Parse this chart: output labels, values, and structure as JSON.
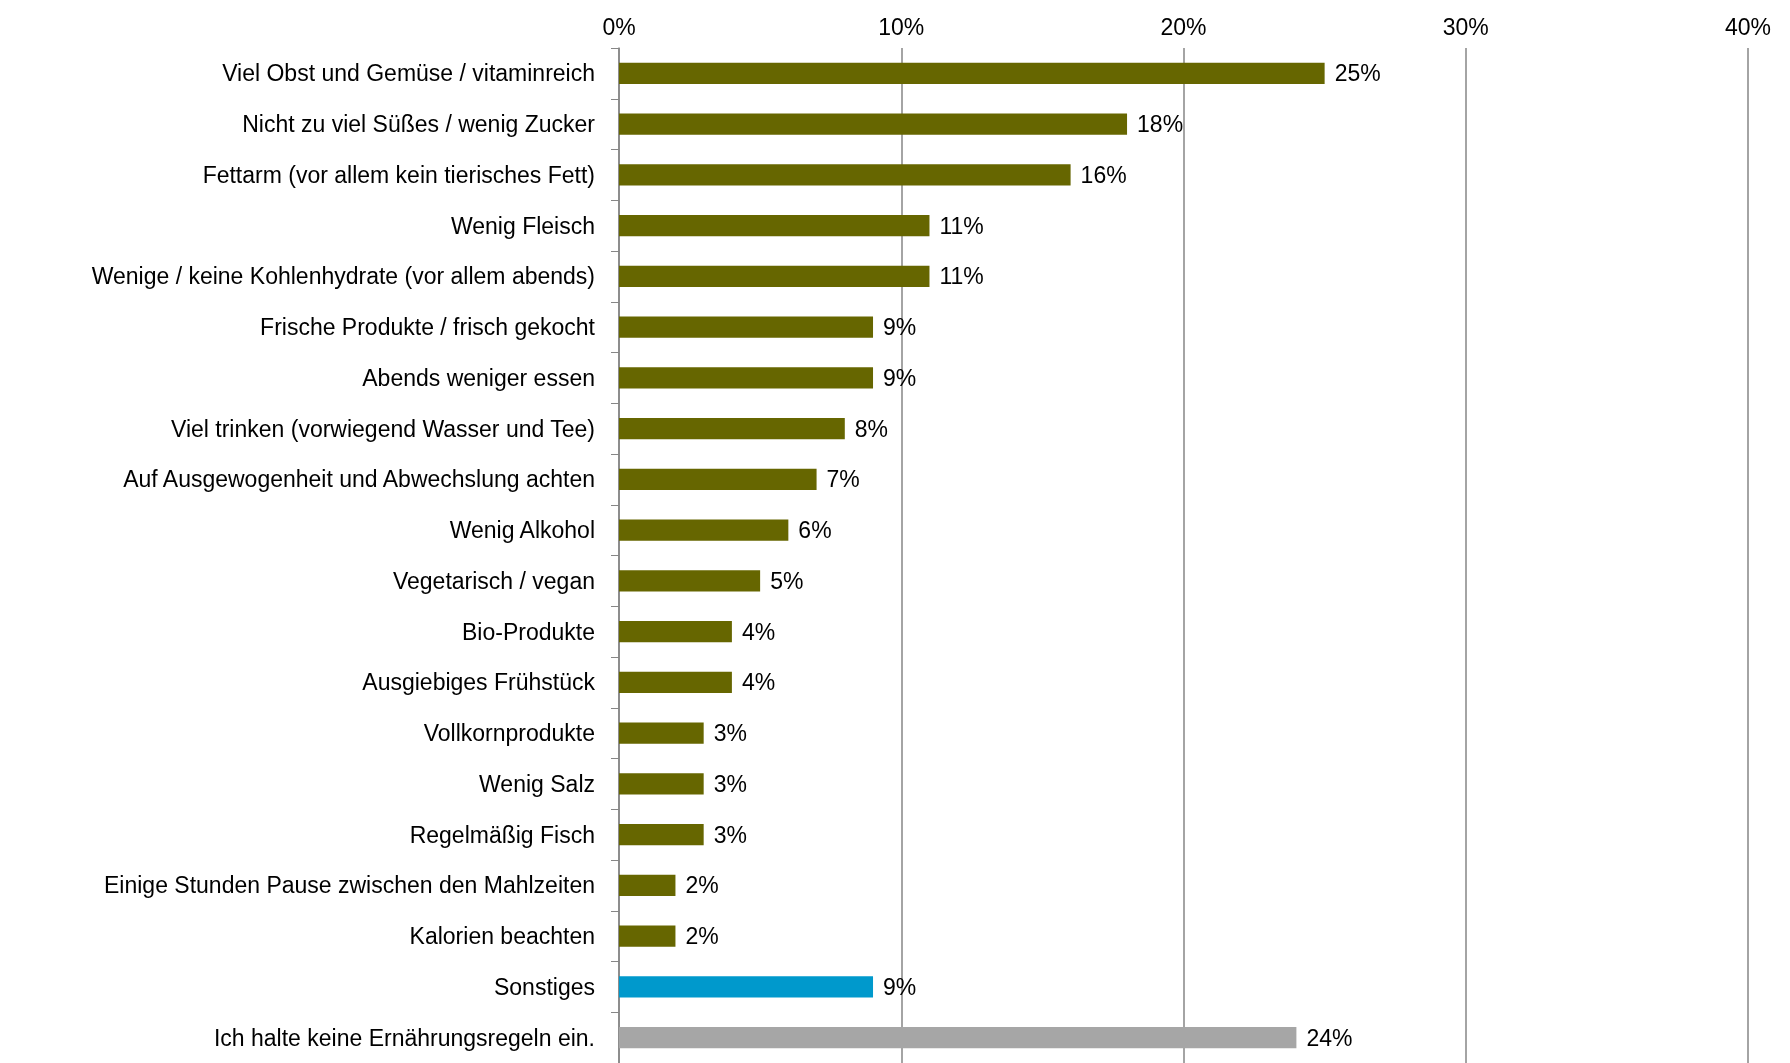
{
  "chart_data": {
    "type": "bar",
    "orientation": "horizontal",
    "categories": [
      "Viel Obst und Gemüse / vitaminreich",
      "Nicht zu viel Süßes / wenig Zucker",
      "Fettarm (vor allem kein tierisches Fett)",
      "Wenig Fleisch",
      "Wenige / keine Kohlenhydrate (vor allem abends)",
      "Frische Produkte / frisch gekocht",
      "Abends weniger essen",
      "Viel trinken (vorwiegend Wasser und Tee)",
      "Auf Ausgewogenheit und Abwechslung achten",
      "Wenig Alkohol",
      "Vegetarisch / vegan",
      "Bio-Produkte",
      "Ausgiebiges Frühstück",
      "Vollkornprodukte",
      "Wenig Salz",
      "Regelmäßig Fisch",
      "Einige Stunden Pause zwischen den Mahlzeiten",
      "Kalorien beachten",
      "Sonstiges",
      "Ich halte keine Ernährungsregeln ein."
    ],
    "values": [
      25,
      18,
      16,
      11,
      11,
      9,
      9,
      8,
      7,
      6,
      5,
      4,
      4,
      3,
      3,
      3,
      2,
      2,
      9,
      24
    ],
    "value_labels": [
      "25%",
      "18%",
      "16%",
      "11%",
      "11%",
      "9%",
      "9%",
      "8%",
      "7%",
      "6%",
      "5%",
      "4%",
      "4%",
      "3%",
      "3%",
      "3%",
      "2%",
      "2%",
      "9%",
      "24%"
    ],
    "colors": [
      "#666600",
      "#666600",
      "#666600",
      "#666600",
      "#666600",
      "#666600",
      "#666600",
      "#666600",
      "#666600",
      "#666600",
      "#666600",
      "#666600",
      "#666600",
      "#666600",
      "#666600",
      "#666600",
      "#666600",
      "#666600",
      "#0099cc",
      "#a6a6a6"
    ],
    "xlim": [
      0,
      40
    ],
    "xticks": [
      {
        "value": 0,
        "label": "0%"
      },
      {
        "value": 10,
        "label": "10%"
      },
      {
        "value": 20,
        "label": "20%"
      },
      {
        "value": 30,
        "label": "30%"
      },
      {
        "value": 40,
        "label": "40%"
      }
    ],
    "grid": "x"
  }
}
